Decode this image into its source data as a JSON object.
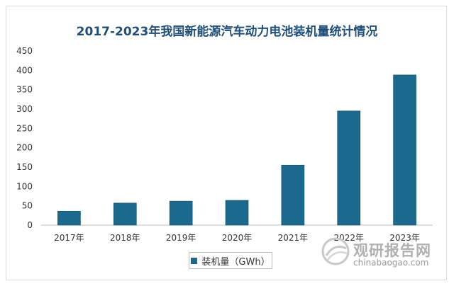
{
  "chart_data": {
    "type": "bar",
    "title": "2017-2023年我国新能源汽车动力电池装机量统计情况",
    "categories": [
      "2017年",
      "2018年",
      "2019年",
      "2020年",
      "2021年",
      "2022年",
      "2023年"
    ],
    "series": [
      {
        "name": "装机量（GWh）",
        "values": [
          36,
          57,
          62,
          64,
          155,
          295,
          388
        ],
        "color": "#1b6a8e"
      }
    ],
    "xlabel": "",
    "ylabel": "",
    "ylim": [
      0,
      450
    ],
    "yticks": [
      0,
      50,
      100,
      150,
      200,
      250,
      300,
      350,
      400,
      450
    ],
    "grid": false,
    "legend_position": "bottom"
  },
  "watermark": {
    "brand": "观研报告网",
    "url": "chinabaogao.com"
  }
}
